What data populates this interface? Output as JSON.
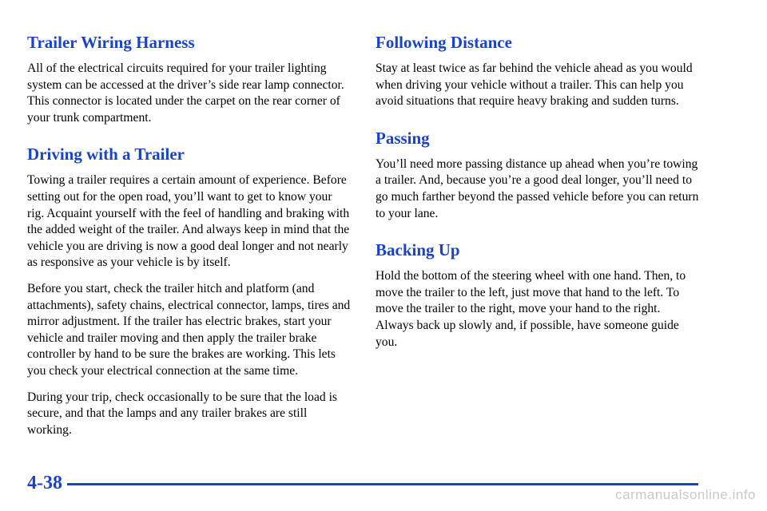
{
  "left": {
    "trailer_wiring": {
      "title": "Trailer Wiring Harness",
      "paragraphs": [
        "All of the electrical circuits required for your trailer lighting system can be accessed at the driver’s side rear lamp connector. This connector is located under the carpet on the rear corner of your trunk compartment."
      ]
    },
    "driving": {
      "title": "Driving with a Trailer",
      "paragraphs": [
        "Towing a trailer requires a certain amount of experience. Before setting out for the open road, you’ll want to get to know your rig. Acquaint yourself with the feel of handling and braking with the added weight of the trailer. And always keep in mind that the vehicle you are driving is now a good deal longer and not nearly as responsive as your vehicle is by itself.",
        "Before you start, check the trailer hitch and platform (and attachments), safety chains, electrical connector, lamps, tires and mirror adjustment. If the trailer has electric brakes, start your vehicle and trailer moving and then apply the trailer brake controller by hand to be sure the brakes are working. This lets you check your electrical connection at the same time.",
        "During your trip, check occasionally to be sure that the load is secure, and that the lamps and any trailer brakes are still working."
      ]
    }
  },
  "right": {
    "following": {
      "title": "Following Distance",
      "paragraphs": [
        "Stay at least twice as far behind the vehicle ahead as you would when driving your vehicle without a trailer. This can help you avoid situations that require heavy braking and sudden turns."
      ]
    },
    "passing": {
      "title": "Passing",
      "paragraphs": [
        "You’ll need more passing distance up ahead when you’re towing a trailer. And, because you’re a good deal longer, you’ll need to go much farther beyond the passed vehicle before you can return to your lane."
      ]
    },
    "backing": {
      "title": "Backing Up",
      "paragraphs": [
        "Hold the bottom of the steering wheel with one hand. Then, to move the trailer to the left, just move that hand to the left. To move the trailer to the right, move your hand to the right. Always back up slowly and, if possible, have someone guide you."
      ]
    }
  },
  "footer": {
    "page_number": "4-38",
    "watermark": "carmanualsonline.info"
  },
  "colors": {
    "heading": "#1a44c8",
    "rule": "#1a44c8",
    "watermark": "#c8c8c8"
  }
}
